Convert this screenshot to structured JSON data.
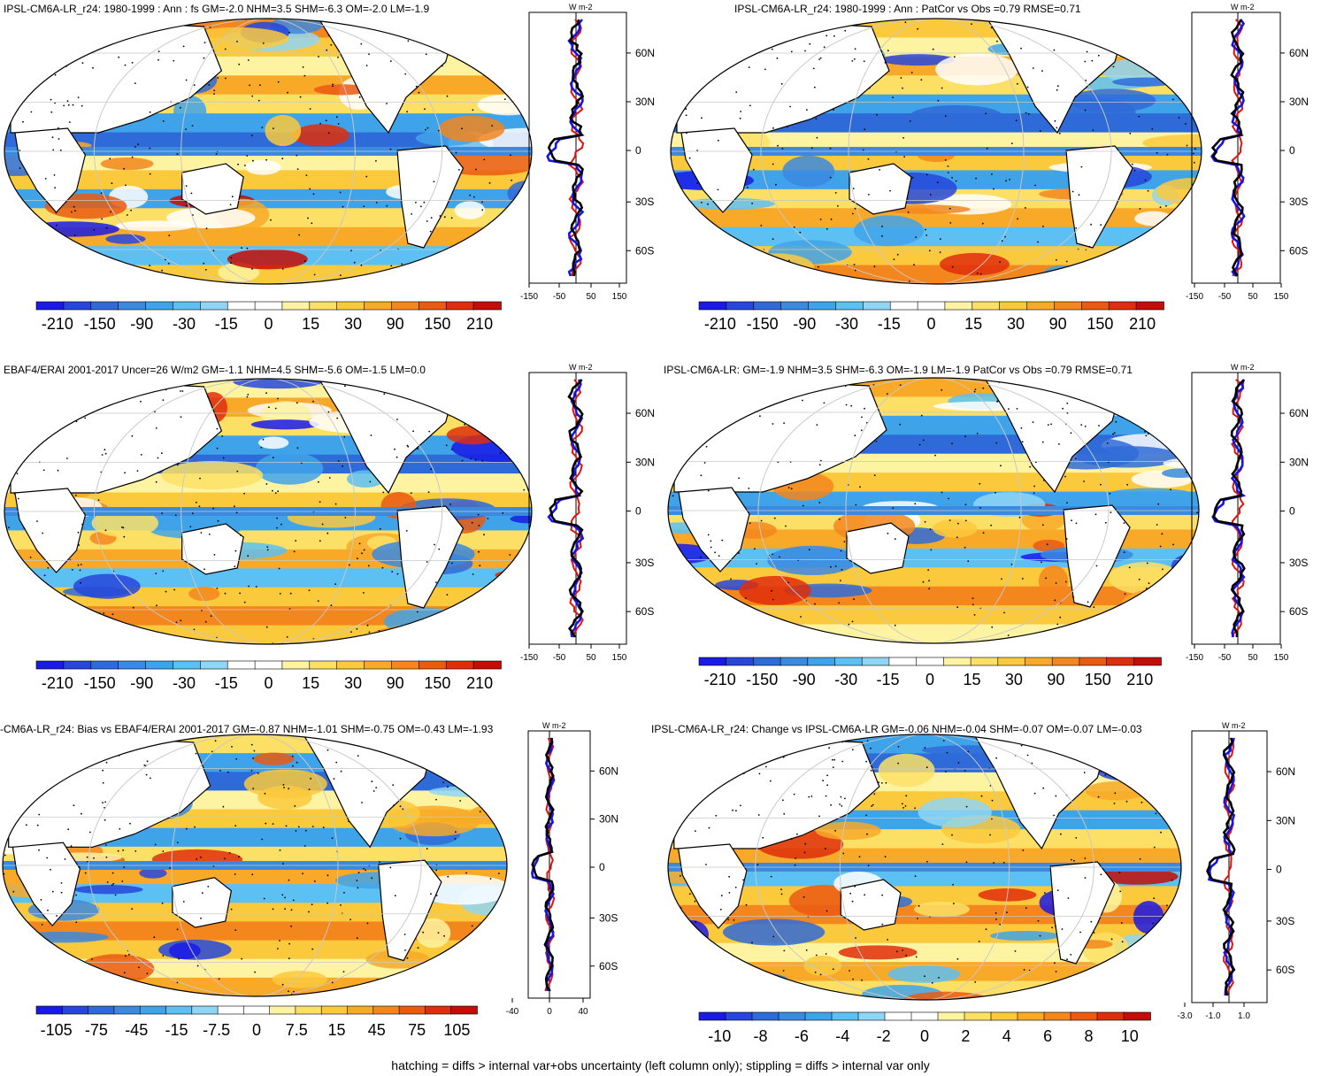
{
  "figure": {
    "footnote": "hatching = diffs > internal var+obs uncertainty (left column only); stippling = diffs > internal var only",
    "colors": {
      "palette": [
        "#1a1ae6",
        "#2646dc",
        "#2f6bd8",
        "#3a8ae0",
        "#3fa3ea",
        "#5cc0f2",
        "#8fd6f5",
        "#ffffff",
        "#ffffff",
        "#fdf3a0",
        "#fbe065",
        "#fbc93c",
        "#f8a928",
        "#f3861d",
        "#ea5b12",
        "#df2e0b",
        "#c30d06"
      ],
      "land": "#ffffff",
      "coast": "#000000"
    }
  },
  "panels": [
    {
      "id": "p1",
      "title": "IPSL-CM6A-LR_r24: 1980-1999 : Ann : fs GM=-2.0 NHM=3.5 SHM=-6.3 OM=-2.0 LM=-1.9",
      "colorbar_labels": [
        "-210",
        "-150",
        "-90",
        "-30",
        "-15",
        "0",
        "15",
        "30",
        "90",
        "150",
        "210"
      ],
      "profile": {
        "unit": "W m-2",
        "x_ticks": [
          "-150",
          "-50",
          "50",
          "150"
        ],
        "lat_labels": [
          "60N",
          "30N",
          "0",
          "30S",
          "60S"
        ]
      }
    },
    {
      "id": "p2",
      "title": "IPSL-CM6A-LR_r24: 1980-1999 : Ann : PatCor vs Obs =0.79 RMSE=0.71",
      "colorbar_labels": [
        "-210",
        "-150",
        "-90",
        "-30",
        "-15",
        "0",
        "15",
        "30",
        "90",
        "150",
        "210"
      ],
      "profile": {
        "unit": "W m-2",
        "x_ticks": [
          "-150",
          "-50",
          "50",
          "150"
        ],
        "lat_labels": [
          "60N",
          "30N",
          "0",
          "30S",
          "60S"
        ]
      }
    },
    {
      "id": "p3",
      "title": "EBAF4/ERAI 2001-2017 Uncer=26 W/m2 GM=-1.1 NHM=4.5 SHM=-5.6 OM=-1.5 LM=0.0",
      "colorbar_labels": [
        "-210",
        "-150",
        "-90",
        "-30",
        "-15",
        "0",
        "15",
        "30",
        "90",
        "150",
        "210"
      ],
      "profile": {
        "unit": "W m-2",
        "x_ticks": [
          "-150",
          "-50",
          "50",
          "150"
        ],
        "lat_labels": [
          "60N",
          "30N",
          "0",
          "30S",
          "60S"
        ]
      }
    },
    {
      "id": "p4",
      "title": "IPSL-CM6A-LR: GM=-1.9 NHM=3.5 SHM=-6.3 OM=-1.9 LM=-1.9 PatCor vs Obs =0.79 RMSE=0.71",
      "colorbar_labels": [
        "-210",
        "-150",
        "-90",
        "-30",
        "-15",
        "0",
        "15",
        "30",
        "90",
        "150",
        "210"
      ],
      "profile": {
        "unit": "W m-2",
        "x_ticks": [
          "-150",
          "-50",
          "50",
          "150"
        ],
        "lat_labels": [
          "60N",
          "30N",
          "0",
          "30S",
          "60S"
        ]
      }
    },
    {
      "id": "p5",
      "title": "-CM6A-LR_r24: Bias vs EBAF4/ERAI 2001-2017 GM=-0.87 NHM=-1.01 SHM=-0.75 OM=-0.43 LM=-1.93",
      "colorbar_labels": [
        "-105",
        "-75",
        "-45",
        "-15",
        "-7.5",
        "0",
        "7.5",
        "15",
        "45",
        "75",
        "105"
      ],
      "profile": {
        "unit": "W m-2",
        "x_ticks": [
          "-40",
          "0",
          "40"
        ],
        "lat_labels": [
          "60N",
          "30N",
          "0",
          "30S",
          "60S"
        ]
      }
    },
    {
      "id": "p6",
      "title": "IPSL-CM6A-LR_r24: Change vs IPSL-CM6A-LR GM=-0.06 NHM=-0.04 SHM=-0.07 OM=-0.07 LM=-0.03",
      "colorbar_labels": [
        "-10",
        "-8",
        "-6",
        "-4",
        "-2",
        "0",
        "2",
        "4",
        "6",
        "8",
        "10"
      ],
      "profile": {
        "unit": "W m-2",
        "x_ticks": [
          "-3.0",
          "-1.0",
          "1.0"
        ],
        "lat_labels": [
          "60N",
          "30N",
          "0",
          "30S",
          "60S"
        ]
      }
    }
  ]
}
